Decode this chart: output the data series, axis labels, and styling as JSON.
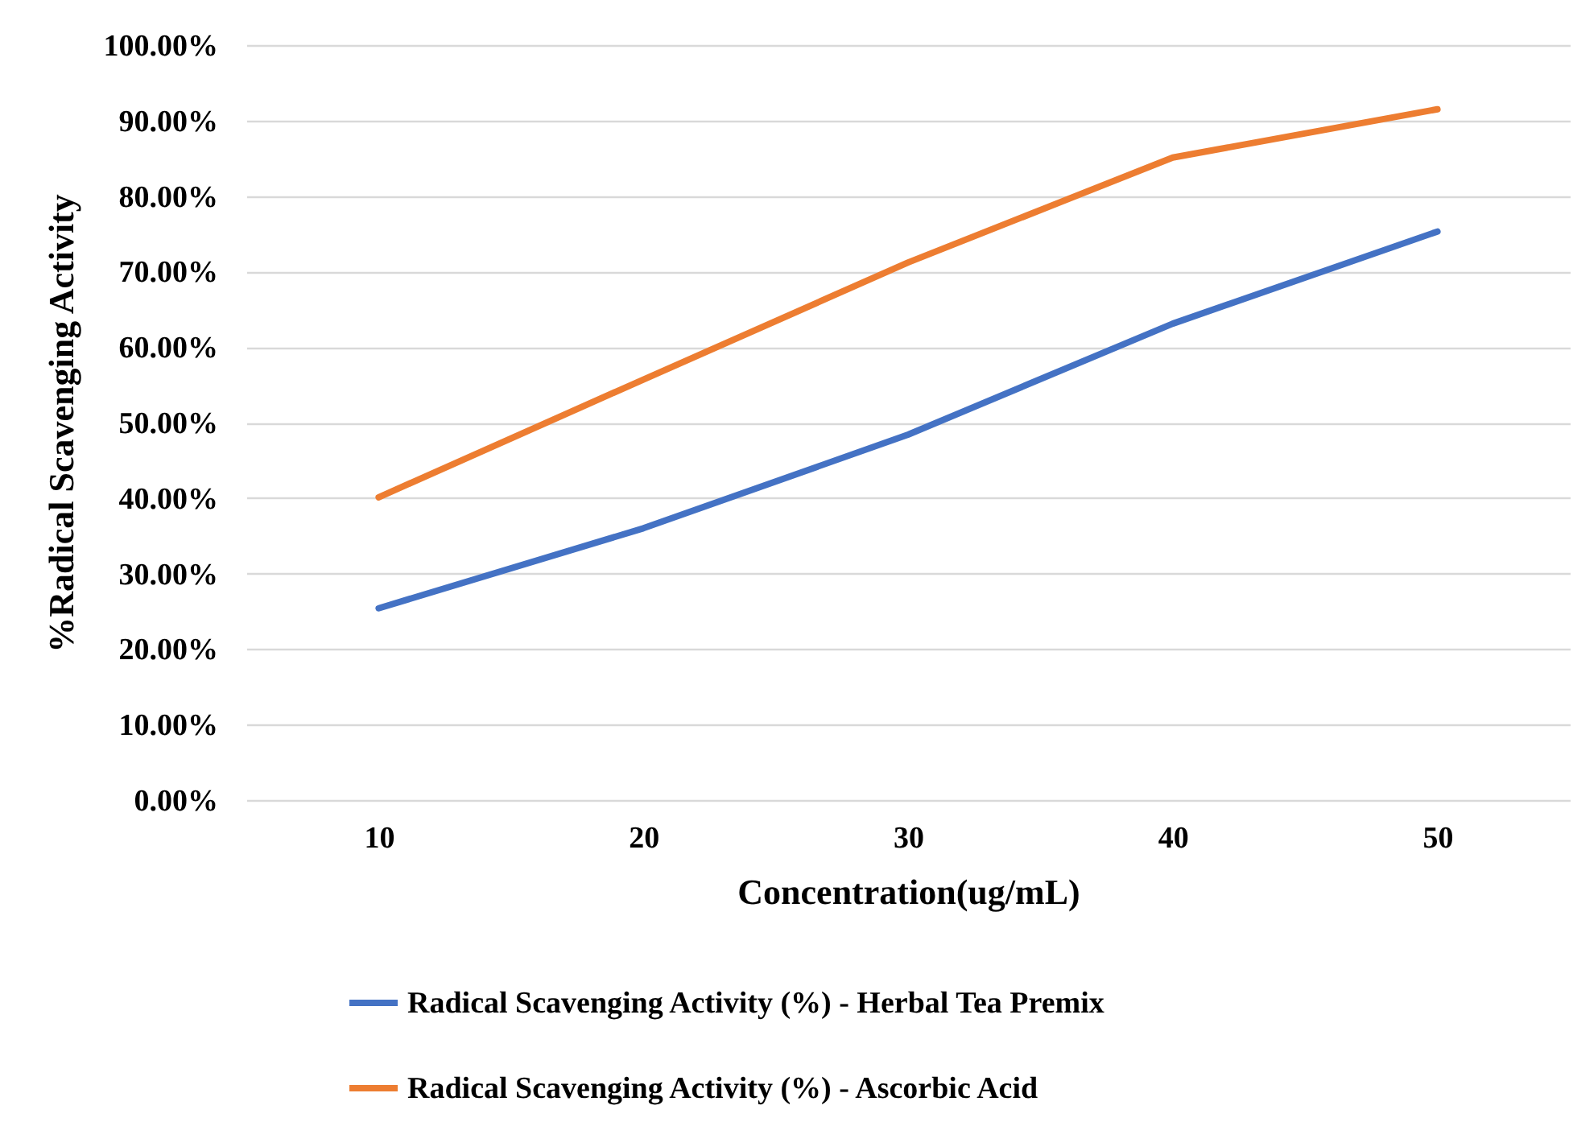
{
  "chart_data": {
    "type": "line",
    "xlabel": "Concentration(ug/mL)",
    "ylabel": "%Radical Scavenging Activity",
    "categories": [
      "10",
      "20",
      "30",
      "40",
      "50"
    ],
    "series": [
      {
        "name": "Radical Scavenging Activity (%) - Herbal Tea Premix",
        "color": "#4472c4",
        "values": [
          25.4,
          36.0,
          48.4,
          63.1,
          75.3
        ]
      },
      {
        "name": "Radical Scavenging Activity (%) - Ascorbic Acid",
        "color": "#ed7d31",
        "values": [
          40.1,
          55.7,
          71.2,
          85.1,
          91.5
        ]
      }
    ],
    "ylim": [
      0,
      100
    ],
    "yticks": [
      {
        "value": 0,
        "label": "0.00%"
      },
      {
        "value": 10,
        "label": "10.00%"
      },
      {
        "value": 20,
        "label": "20.00%"
      },
      {
        "value": 30,
        "label": "30.00%"
      },
      {
        "value": 40,
        "label": "40.00%"
      },
      {
        "value": 50,
        "label": "50.00%"
      },
      {
        "value": 60,
        "label": "60.00%"
      },
      {
        "value": 70,
        "label": "70.00%"
      },
      {
        "value": 80,
        "label": "80.00%"
      },
      {
        "value": 90,
        "label": "90.00%"
      },
      {
        "value": 100,
        "label": "100.00%"
      }
    ],
    "grid": "y",
    "legend": "bottom",
    "marker": "none",
    "line_style": "solid"
  }
}
